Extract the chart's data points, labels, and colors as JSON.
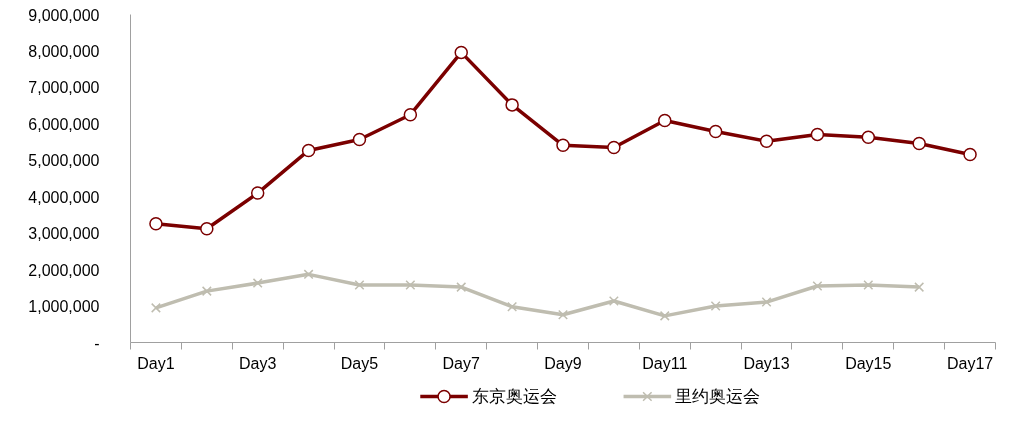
{
  "chart_data": {
    "type": "line",
    "categories": [
      "Day1",
      null,
      "Day3",
      null,
      "Day5",
      null,
      "Day7",
      null,
      "Day9",
      null,
      "Day11",
      null,
      "Day13",
      null,
      "Day15",
      null,
      "Day17"
    ],
    "series": [
      {
        "name": "东京奥运会",
        "color": "#7b0000",
        "marker": "circle",
        "values": [
          3260000,
          3120000,
          4100000,
          5270000,
          5570000,
          6250000,
          7960000,
          6520000,
          5410000,
          5350000,
          6090000,
          5790000,
          5520000,
          5710000,
          5630000,
          5460000,
          5160000
        ]
      },
      {
        "name": "里约奥运会",
        "color": "#bfbdb0",
        "marker": "cross",
        "values": [
          950000,
          1410000,
          1630000,
          1870000,
          1580000,
          1580000,
          1520000,
          980000,
          760000,
          1140000,
          730000,
          1000000,
          1110000,
          1550000,
          1580000,
          1520000,
          null
        ]
      }
    ],
    "ylim": [
      0,
      9000000
    ],
    "yticks": [
      {
        "value": 0,
        "label": "-"
      },
      {
        "value": 1000000,
        "label": "1,000,000"
      },
      {
        "value": 2000000,
        "label": "2,000,000"
      },
      {
        "value": 3000000,
        "label": "3,000,000"
      },
      {
        "value": 4000000,
        "label": "4,000,000"
      },
      {
        "value": 5000000,
        "label": "5,000,000"
      },
      {
        "value": 6000000,
        "label": "6,000,000"
      },
      {
        "value": 7000000,
        "label": "7,000,000"
      },
      {
        "value": 8000000,
        "label": "8,000,000"
      },
      {
        "value": 9000000,
        "label": "9,000,000"
      }
    ],
    "grid": false,
    "legend": "bottom",
    "line_style": "solid"
  }
}
